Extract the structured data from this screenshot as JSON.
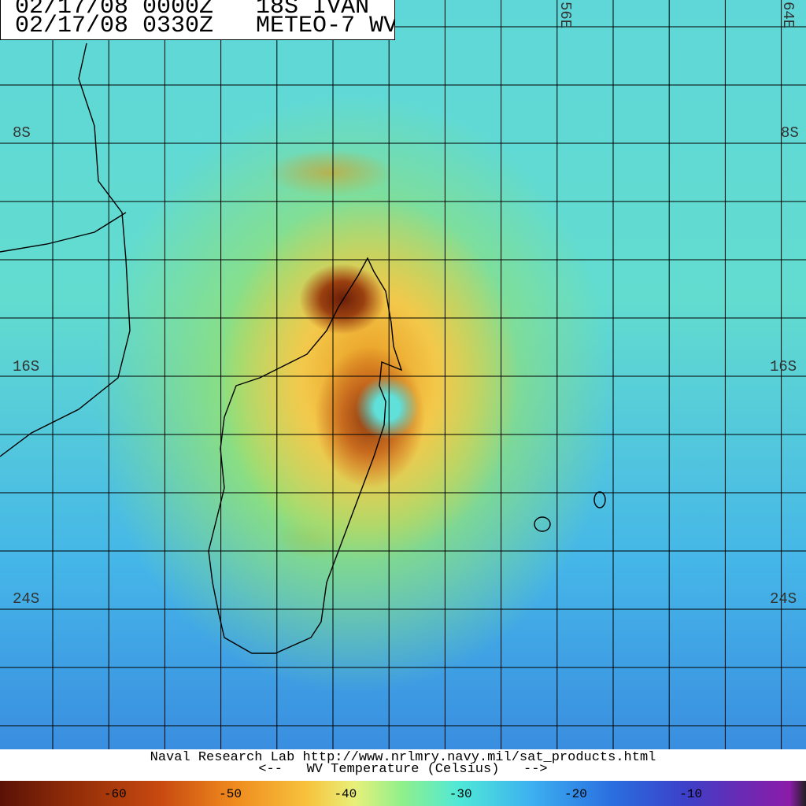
{
  "header": {
    "line1": "02/17/08 0000Z   18S IVAN",
    "line2": "02/17/08 0330Z   METEO-7 WV"
  },
  "grid_labels": {
    "lon_56": "56E",
    "lon_64": "64E",
    "lat_8_left": "8S",
    "lat_8_right": "8S",
    "lat_16_left": "16S",
    "lat_16_right": "16S",
    "lat_24_left": "24S",
    "lat_24_right": "24S"
  },
  "footer": {
    "credit": "Naval Research Lab http://www.nrlmry.navy.mil/sat_products.html",
    "legend_title": "<--   WV Temperature (Celsius)   -->"
  },
  "colorbar": {
    "range": [
      -70,
      0
    ],
    "ticks": [
      -60,
      -50,
      -40,
      -30,
      -20,
      -10
    ]
  }
}
